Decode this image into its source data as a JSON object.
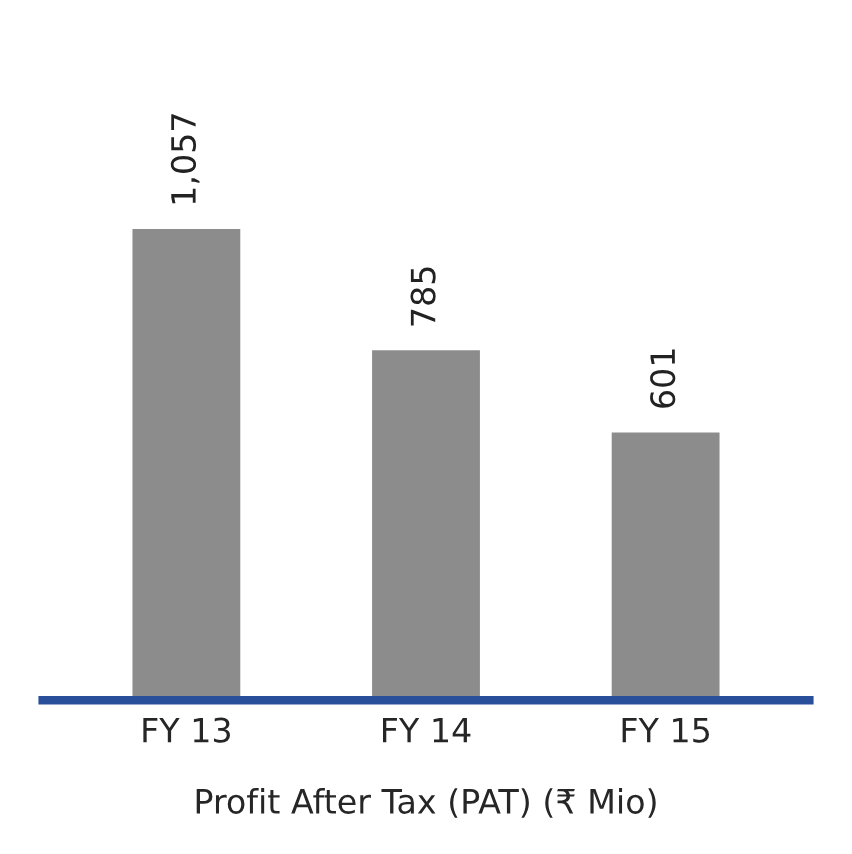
{
  "chart_data": {
    "type": "bar",
    "xlabel": "Profit After Tax (PAT) (₹ Mio)",
    "categories": [
      "FY 13",
      "FY 14",
      "FY 15"
    ],
    "values": [
      1057,
      785,
      601
    ],
    "value_labels": [
      "1,057",
      "785",
      "601"
    ],
    "color": "#8c8c8c",
    "tick_labels": "x",
    "grid": false,
    "legend": false
  }
}
